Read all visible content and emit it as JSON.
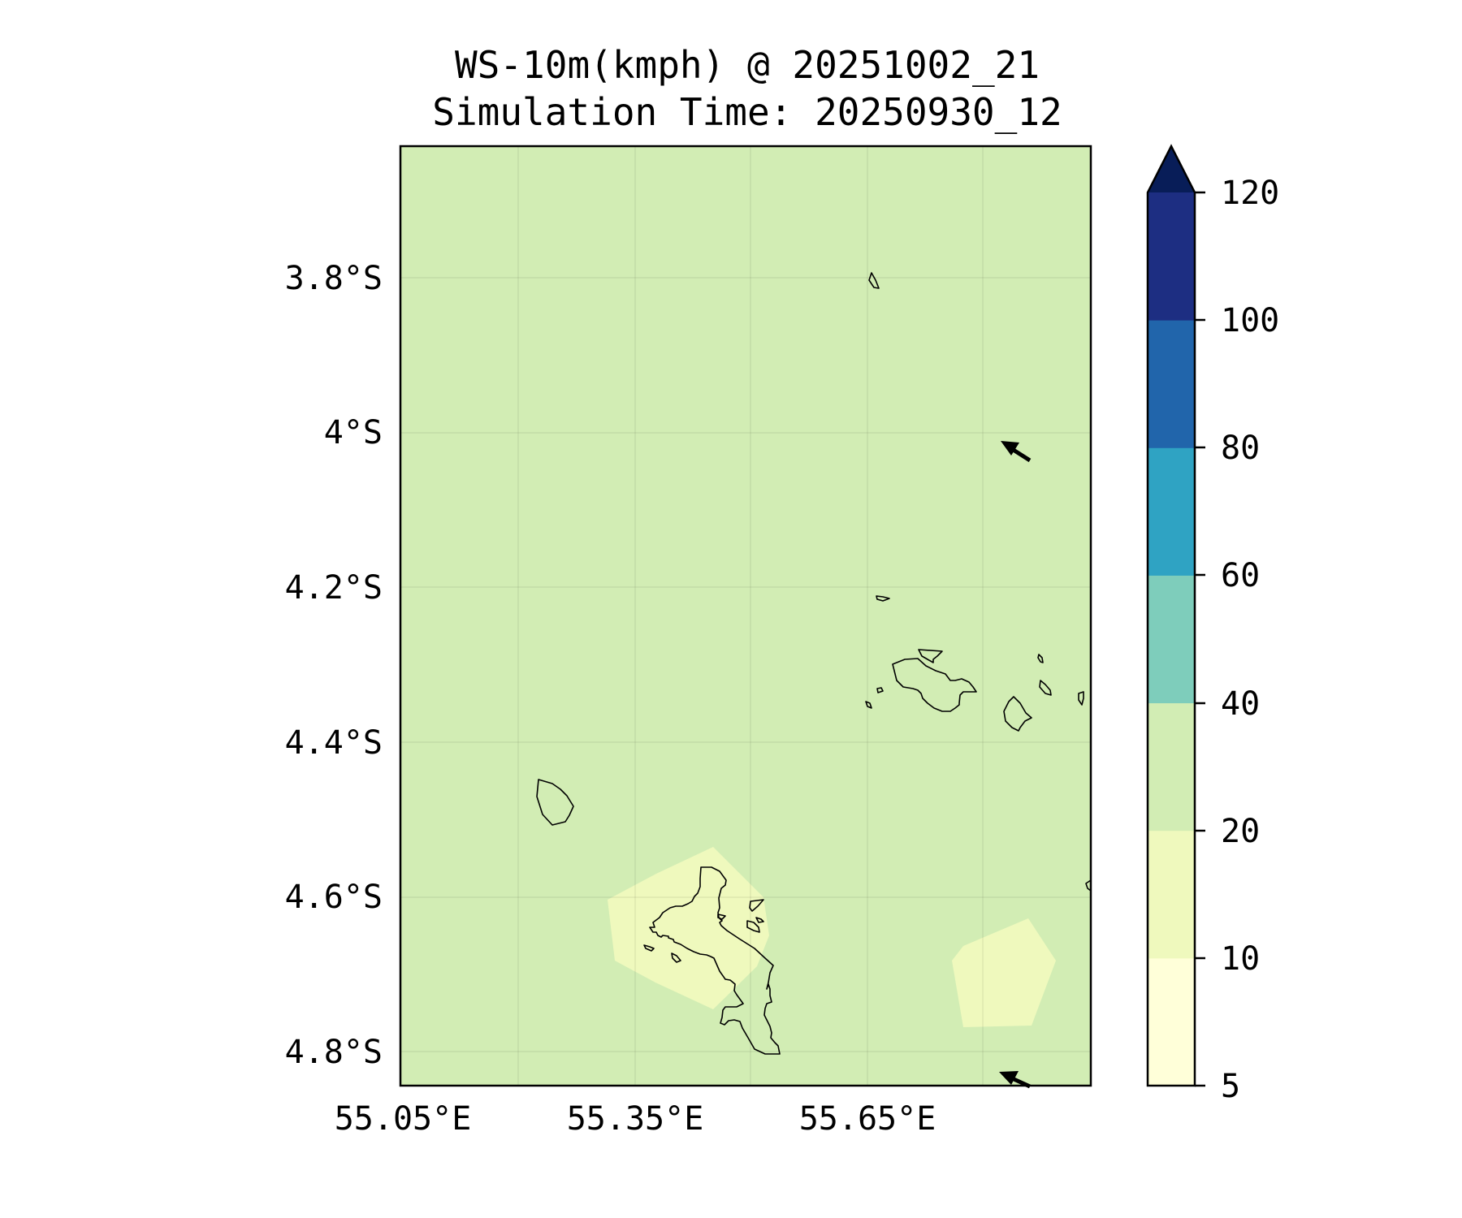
{
  "title": {
    "line1": "WS-10m(kmph) @ 20251002_21",
    "line2": "Simulation Time: 20250930_12"
  },
  "map": {
    "lat_labels": [
      "3.8°S",
      "4°S",
      "4.2°S",
      "4.4°S",
      "4.6°S",
      "4.8°S"
    ],
    "lon_labels": [
      "55.05°E",
      "55.35°E",
      "55.65°E"
    ],
    "lon_range": [
      55.05,
      55.94
    ],
    "lat_range": [
      -3.63,
      -4.84
    ],
    "background_color": "#d2edb4",
    "low_wind_color": "#eff9bd",
    "features": [
      "coastline",
      "gridlines",
      "wind-vectors"
    ]
  },
  "colorbar": {
    "ticks": [
      "5",
      "10",
      "20",
      "40",
      "60",
      "80",
      "100",
      "120"
    ],
    "levels": [
      5,
      10,
      20,
      40,
      60,
      80,
      100,
      120
    ],
    "colors": [
      "#ffffd9",
      "#eff9bd",
      "#d2edb4",
      "#7ecdbb",
      "#2fa3c3",
      "#2165ab",
      "#1d2e82",
      "#081d58"
    ],
    "extend": "max"
  }
}
